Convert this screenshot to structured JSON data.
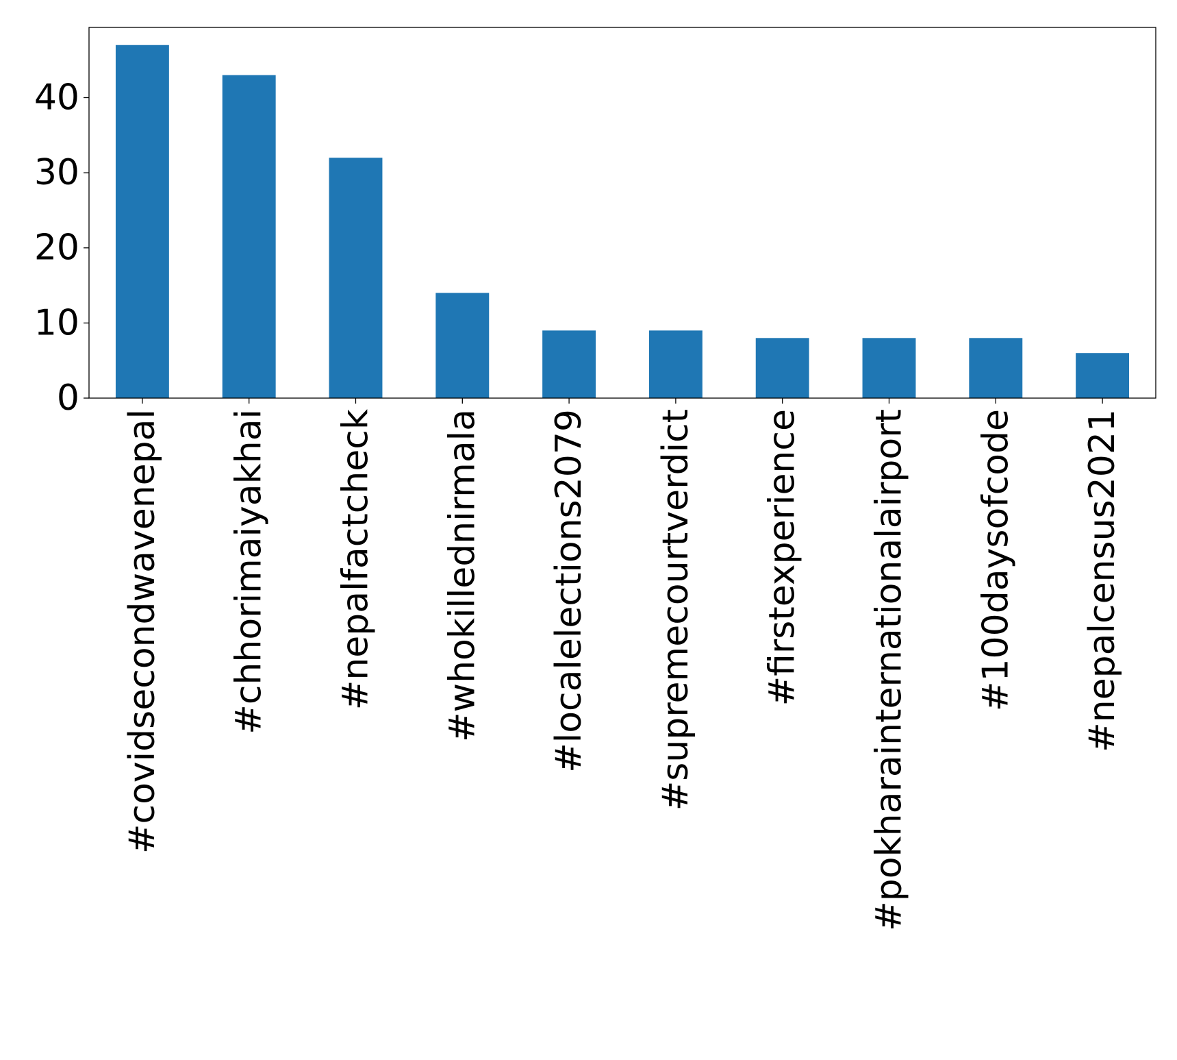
{
  "chart_data": {
    "type": "bar",
    "title": "",
    "xlabel": "",
    "ylabel": "",
    "categories": [
      "#covidsecondwavenepal",
      "#chhorimaiyakhai",
      "#nepalfactcheck",
      "#whokillednirmala",
      "#localelections2079",
      "#supremecourtverdict",
      "#firstexperience",
      "#pokharainternationalairport",
      "#100daysofcode",
      "#nepalcensus2021"
    ],
    "values": [
      47,
      43,
      32,
      14,
      9,
      9,
      8,
      8,
      8,
      6
    ],
    "ylim": [
      0,
      49.35
    ],
    "yticks": [
      0,
      10,
      20,
      30,
      40
    ],
    "grid": false,
    "legend": "none",
    "colors": {
      "bar": "#1f77b4",
      "axis": "#000000",
      "background": "#ffffff"
    }
  }
}
